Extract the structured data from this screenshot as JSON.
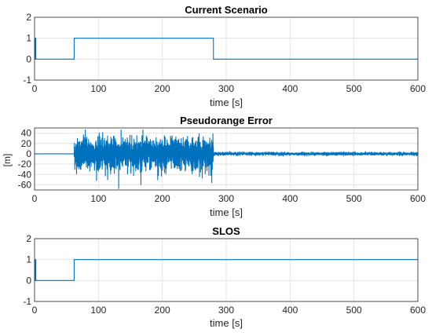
{
  "chart_data": [
    {
      "type": "line",
      "title": "Current Scenario",
      "xlabel": "time [s]",
      "ylabel": "",
      "xlim": [
        0,
        600
      ],
      "ylim": [
        -1,
        2
      ],
      "xticks": [
        0,
        100,
        200,
        300,
        400,
        500,
        600
      ],
      "yticks": [
        -1,
        0,
        1,
        2
      ],
      "grid": true,
      "series": [
        {
          "x": [
            0,
            1,
            1,
            2,
            2,
            62,
            62,
            280,
            280,
            600
          ],
          "y": [
            0,
            0,
            1,
            1,
            0,
            0,
            1,
            1,
            0,
            0
          ]
        }
      ]
    },
    {
      "type": "line",
      "title": "Pseudorange Error",
      "xlabel": "time [s]",
      "ylabel": "[m]",
      "xlim": [
        0,
        600
      ],
      "ylim": [
        -70,
        50
      ],
      "xticks": [
        0,
        100,
        200,
        300,
        400,
        500,
        600
      ],
      "yticks": [
        -60,
        -40,
        -20,
        0,
        20,
        40
      ],
      "grid": true,
      "series": [
        {
          "segments": [
            {
              "x_range": [
                0,
                62
              ],
              "amplitude": 0,
              "peak_min": 0,
              "peak_max": 0
            },
            {
              "x_range": [
                62,
                280
              ],
              "amplitude": 15,
              "peak_min": -68,
              "peak_max": 47
            },
            {
              "x_range": [
                280,
                600
              ],
              "amplitude": 1.5,
              "peak_min": -5,
              "peak_max": 5
            }
          ]
        }
      ]
    },
    {
      "type": "line",
      "title": "SLOS",
      "xlabel": "time [s]",
      "ylabel": "",
      "xlim": [
        0,
        600
      ],
      "ylim": [
        -1,
        2
      ],
      "xticks": [
        0,
        100,
        200,
        300,
        400,
        500,
        600
      ],
      "yticks": [
        -1,
        0,
        1,
        2
      ],
      "grid": true,
      "series": [
        {
          "x": [
            0,
            1,
            1,
            2,
            2,
            62,
            62,
            600
          ],
          "y": [
            0,
            0,
            1,
            1,
            0,
            0,
            1,
            1
          ]
        }
      ]
    }
  ],
  "colors": {
    "line": "#0072BD"
  }
}
